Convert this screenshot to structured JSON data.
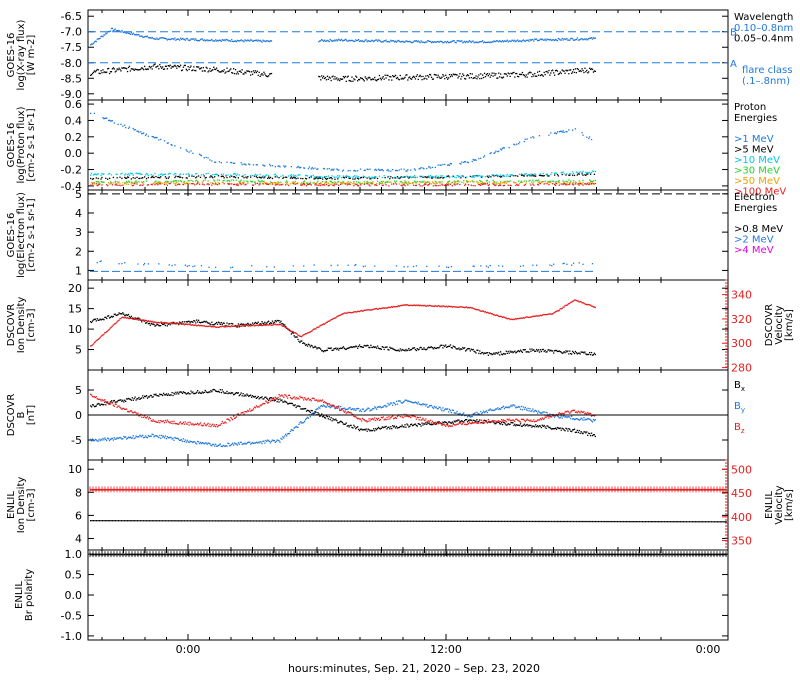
{
  "footer": {
    "xlabel": "hours:minutes, Sep. 21, 2020 – Sep. 23, 2020",
    "xticks": [
      "0:00",
      "12:00",
      "0:00"
    ]
  },
  "colors": {
    "black": "#000000",
    "blue": "#1e78dc",
    "cyan": "#00c8e6",
    "green": "#28d228",
    "orange": "#f0a000",
    "red": "#e61e1e",
    "magenta": "#e600e6"
  },
  "chart_data": [
    {
      "type": "scatter",
      "ylabel": [
        "GOES-16",
        "log(X-ray flux)",
        "[W m-2]"
      ],
      "ylim": [
        -9.2,
        -6.3
      ],
      "yticks": [
        "-6.5",
        "-7.0",
        "-7.5",
        "-8.0",
        "-8.5",
        "-9.0"
      ],
      "x_range_hours": [
        0,
        24
      ],
      "series": [
        {
          "name": "0.10-0.8nm",
          "color": "blue",
          "points": [
            [
              0,
              -7.4
            ],
            [
              1,
              -6.9
            ],
            [
              3,
              -7.2
            ],
            [
              6,
              -7.25
            ],
            [
              9,
              -7.3
            ],
            [
              12,
              -7.25
            ],
            [
              15,
              -7.3
            ],
            [
              19,
              -7.3
            ],
            [
              21,
              -7.25
            ],
            [
              24,
              -7.2
            ]
          ]
        },
        {
          "name": "0.05-0.4nm",
          "color": "black",
          "points": [
            [
              0,
              -8.3
            ],
            [
              3,
              -8.1
            ],
            [
              6,
              -8.2
            ],
            [
              9,
              -8.4
            ],
            [
              12,
              -8.5
            ],
            [
              15,
              -8.45
            ],
            [
              19,
              -8.4
            ],
            [
              21,
              -8.35
            ],
            [
              24,
              -8.2
            ]
          ]
        }
      ],
      "legend": {
        "title": "Wavelength",
        "entries": [
          {
            "label": "0.10–0.8nm",
            "color": "blue"
          },
          {
            "label": "0.05–0.4nm",
            "color": "black"
          }
        ],
        "extra": [
          "flare class",
          "(.1–.8nm)"
        ]
      },
      "flare_levels": [
        {
          "label": "B",
          "y": -7.0
        },
        {
          "label": "A",
          "y": -8.0
        }
      ]
    },
    {
      "type": "scatter",
      "ylabel": [
        "GOES-16",
        "log(Proton flux)",
        "[cm-2 s-1 sr-1]"
      ],
      "ylim": [
        -0.45,
        0.65
      ],
      "yticks": [
        "0.6",
        "0.4",
        "0.2",
        "0.0",
        "-0.2",
        "-0.4"
      ],
      "series": [
        {
          "name": ">1 MeV",
          "color": "blue",
          "points": [
            [
              0,
              0.5
            ],
            [
              3,
              0.2
            ],
            [
              6,
              -0.1
            ],
            [
              9,
              -0.15
            ],
            [
              12,
              -0.2
            ],
            [
              15,
              -0.2
            ],
            [
              18,
              -0.1
            ],
            [
              21,
              0.2
            ],
            [
              23,
              0.3
            ],
            [
              24,
              0.15
            ]
          ]
        },
        {
          "name": ">5 MeV",
          "color": "black",
          "points": [
            [
              0,
              -0.3
            ],
            [
              6,
              -0.28
            ],
            [
              12,
              -0.3
            ],
            [
              18,
              -0.28
            ],
            [
              24,
              -0.25
            ]
          ]
        },
        {
          "name": ">10 MeV",
          "color": "cyan",
          "points": [
            [
              0,
              -0.25
            ],
            [
              6,
              -0.25
            ],
            [
              12,
              -0.28
            ],
            [
              18,
              -0.28
            ],
            [
              24,
              -0.22
            ]
          ]
        },
        {
          "name": ">30 MeV",
          "color": "green",
          "points": [
            [
              0,
              -0.35
            ],
            [
              6,
              -0.33
            ],
            [
              12,
              -0.35
            ],
            [
              18,
              -0.34
            ],
            [
              24,
              -0.33
            ]
          ]
        },
        {
          "name": ">50 MeV",
          "color": "orange",
          "points": [
            [
              0,
              -0.36
            ],
            [
              6,
              -0.36
            ],
            [
              12,
              -0.36
            ],
            [
              18,
              -0.35
            ],
            [
              24,
              -0.36
            ]
          ]
        },
        {
          "name": ">100 MeV",
          "color": "red",
          "points": [
            [
              0,
              -0.38
            ],
            [
              6,
              -0.37
            ],
            [
              12,
              -0.38
            ],
            [
              18,
              -0.38
            ],
            [
              24,
              -0.37
            ]
          ]
        }
      ],
      "legend": {
        "title": [
          "Proton",
          "Energies"
        ],
        "entries": [
          {
            "label": ">1 MeV",
            "color": "blue"
          },
          {
            "label": ">5 MeV",
            "color": "black"
          },
          {
            "label": ">10 MeV",
            "color": "cyan"
          },
          {
            "label": ">30 MeV",
            "color": "green"
          },
          {
            "label": ">50 MeV",
            "color": "orange"
          },
          {
            "label": ">100 MeV",
            "color": "red"
          }
        ]
      }
    },
    {
      "type": "scatter",
      "ylabel": [
        "GOES-16",
        "log(Electron flux)",
        "[cm-2 s-1 sr-1]"
      ],
      "ylim": [
        0.5,
        5.2
      ],
      "yticks": [
        "5",
        "4",
        "3",
        "2",
        "1"
      ],
      "series": [
        {
          "name": ">0.8 MeV",
          "color": "black",
          "points": []
        },
        {
          "name": ">2 MeV",
          "color": "blue",
          "points": [
            [
              0,
              1.5
            ],
            [
              6,
              1.2
            ],
            [
              12,
              1.3
            ],
            [
              18,
              1.2
            ],
            [
              24,
              1.4
            ]
          ]
        },
        {
          "name": ">4 MeV",
          "color": "magenta",
          "points": []
        }
      ],
      "reference_line": 5.0,
      "legend": {
        "title": [
          "Electron",
          "Energies"
        ],
        "entries": [
          {
            "label": ">0.8 MeV",
            "color": "black"
          },
          {
            "label": ">2 MeV",
            "color": "blue"
          },
          {
            "label": ">4 MeV",
            "color": "magenta"
          }
        ]
      }
    },
    {
      "type": "scatter",
      "ylabel": [
        "DSCOVR",
        "Ion Density",
        "[cm-3]"
      ],
      "ylim": [
        0,
        22
      ],
      "yticks": [
        "20",
        "15",
        "10",
        "5"
      ],
      "right_ylabel": [
        "DSCOVR",
        "Velocity",
        "[km/s]"
      ],
      "right_ylim": [
        278,
        352
      ],
      "right_yticks": [
        "340",
        "320",
        "300",
        "280"
      ],
      "series": [
        {
          "name": "Ion Density",
          "color": "black",
          "points": [
            [
              0,
              12
            ],
            [
              1.5,
              14
            ],
            [
              3,
              11
            ],
            [
              5,
              12
            ],
            [
              7,
              11
            ],
            [
              9,
              12
            ],
            [
              10,
              7
            ],
            [
              11,
              5
            ],
            [
              13,
              6
            ],
            [
              15,
              5
            ],
            [
              17,
              6
            ],
            [
              19,
              4
            ],
            [
              21,
              5
            ],
            [
              24,
              4
            ]
          ]
        },
        {
          "name": "Velocity",
          "color": "red",
          "axis": "right",
          "points": [
            [
              0,
              298
            ],
            [
              1.5,
              322
            ],
            [
              3,
              318
            ],
            [
              6,
              314
            ],
            [
              9,
              316
            ],
            [
              10,
              306
            ],
            [
              12,
              325
            ],
            [
              15,
              332
            ],
            [
              18,
              330
            ],
            [
              20,
              320
            ],
            [
              22,
              325
            ],
            [
              23,
              336
            ],
            [
              24,
              330
            ]
          ]
        }
      ]
    },
    {
      "type": "scatter",
      "ylabel": [
        "DSCOVR",
        "B",
        "[nT]"
      ],
      "ylim": [
        -9,
        9
      ],
      "yticks": [
        "5",
        "0",
        "-5"
      ],
      "series": [
        {
          "name": "Bx",
          "color": "black",
          "points": [
            [
              0,
              2
            ],
            [
              3,
              4
            ],
            [
              6,
              5
            ],
            [
              9,
              3
            ],
            [
              11,
              0
            ],
            [
              13,
              -3
            ],
            [
              15,
              -2
            ],
            [
              18,
              -1
            ],
            [
              21,
              -2
            ],
            [
              23,
              -3
            ],
            [
              24,
              -4
            ]
          ]
        },
        {
          "name": "By",
          "color": "blue",
          "points": [
            [
              0,
              -5
            ],
            [
              3,
              -4
            ],
            [
              6,
              -6
            ],
            [
              9,
              -5
            ],
            [
              11,
              2
            ],
            [
              13,
              1
            ],
            [
              15,
              3
            ],
            [
              18,
              0
            ],
            [
              20,
              2
            ],
            [
              22,
              0
            ],
            [
              24,
              -1
            ]
          ]
        },
        {
          "name": "Bz",
          "color": "red",
          "points": [
            [
              0,
              4
            ],
            [
              3,
              -1
            ],
            [
              6,
              -2
            ],
            [
              9,
              4
            ],
            [
              11,
              3
            ],
            [
              13,
              -1
            ],
            [
              15,
              0
            ],
            [
              17,
              -2
            ],
            [
              19,
              -1
            ],
            [
              21,
              -1
            ],
            [
              23,
              1
            ],
            [
              24,
              0
            ]
          ]
        }
      ],
      "legend": {
        "entries": [
          {
            "label": "Bx",
            "color": "black"
          },
          {
            "label": "By",
            "color": "blue"
          },
          {
            "label": "Bz",
            "color": "red"
          }
        ]
      }
    },
    {
      "type": "scatter",
      "ylabel": [
        "ENLIL",
        "Ion Density",
        "[cm-3]"
      ],
      "ylim": [
        3,
        10.8
      ],
      "yticks": [
        "10",
        "8",
        "6",
        "4"
      ],
      "right_ylabel": [
        "ENLIL",
        "Velocity",
        "[km/s]"
      ],
      "right_ylim": [
        330,
        520
      ],
      "right_yticks": [
        "500",
        "450",
        "400",
        "350"
      ],
      "x_range_hours": [
        0,
        52
      ],
      "series": [
        {
          "name": "Ion Density",
          "color": "black",
          "points": [
            [
              0,
              5.6
            ],
            [
              52,
              5.5
            ]
          ]
        },
        {
          "name": "Velocity",
          "color": "red",
          "axis": "right",
          "points": [
            [
              0,
              458
            ],
            [
              52,
              458
            ]
          ]
        }
      ]
    },
    {
      "type": "scatter",
      "ylabel": [
        "ENLIL",
        "Br polarity"
      ],
      "ylim": [
        -1.1,
        1.1
      ],
      "yticks": [
        "1.0",
        "0.5",
        "0.0",
        "-0.5",
        "-1.0"
      ],
      "x_range_hours": [
        0,
        52
      ],
      "series": [
        {
          "name": "Br polarity",
          "color": "black",
          "points": [
            [
              0,
              1.0
            ],
            [
              52,
              1.0
            ]
          ]
        }
      ]
    }
  ]
}
